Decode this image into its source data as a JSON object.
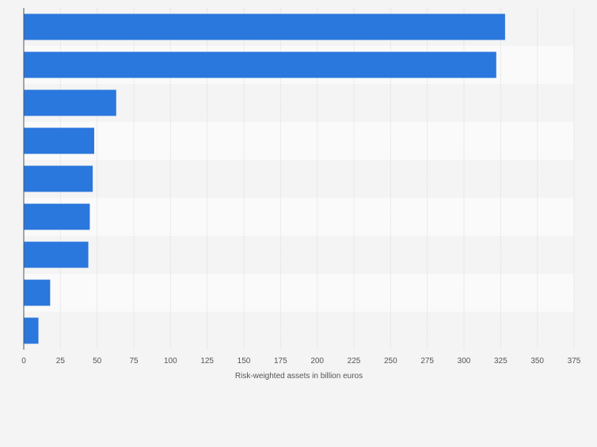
{
  "chart_data": {
    "type": "bar",
    "orientation": "horizontal",
    "title": "",
    "xlabel": "Risk-weighted assets in billion euros",
    "ylabel": "",
    "xlim": [
      0,
      375
    ],
    "xticks": [
      0,
      25,
      50,
      75,
      100,
      125,
      150,
      175,
      200,
      225,
      250,
      275,
      300,
      325,
      350,
      375
    ],
    "categories": [
      "",
      "",
      "",
      "",
      "",
      "",
      "",
      "",
      ""
    ],
    "values": [
      328,
      322,
      63,
      48,
      47,
      45,
      44,
      18,
      10
    ],
    "grid": true,
    "bar_color": "#2a77dd"
  }
}
